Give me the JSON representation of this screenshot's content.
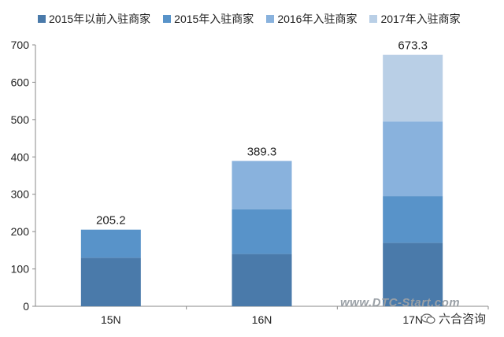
{
  "chart_data": {
    "type": "bar",
    "stacked": true,
    "categories": [
      "15N",
      "16N",
      "17N"
    ],
    "series": [
      {
        "name": "2015年以前入驻商家",
        "values": [
          130,
          140,
          170
        ],
        "color": "#4a7aaa"
      },
      {
        "name": "2015年入驻商家",
        "values": [
          75.2,
          120,
          125
        ],
        "color": "#5893c9"
      },
      {
        "name": "2016年入驻商家",
        "values": [
          0,
          129.3,
          200
        ],
        "color": "#89b2dd"
      },
      {
        "name": "2017年入驻商家",
        "values": [
          0,
          0,
          178.3
        ],
        "color": "#b9cfe6"
      }
    ],
    "totals": [
      "205.2",
      "389.3",
      "673.3"
    ],
    "ylim": [
      0,
      700
    ],
    "yticks": [
      "0",
      "100",
      "200",
      "300",
      "400",
      "500",
      "600",
      "700"
    ],
    "grid": false,
    "legend_position": "top"
  },
  "watermark": "www.DTC-Start.com",
  "brand": "六合咨询"
}
